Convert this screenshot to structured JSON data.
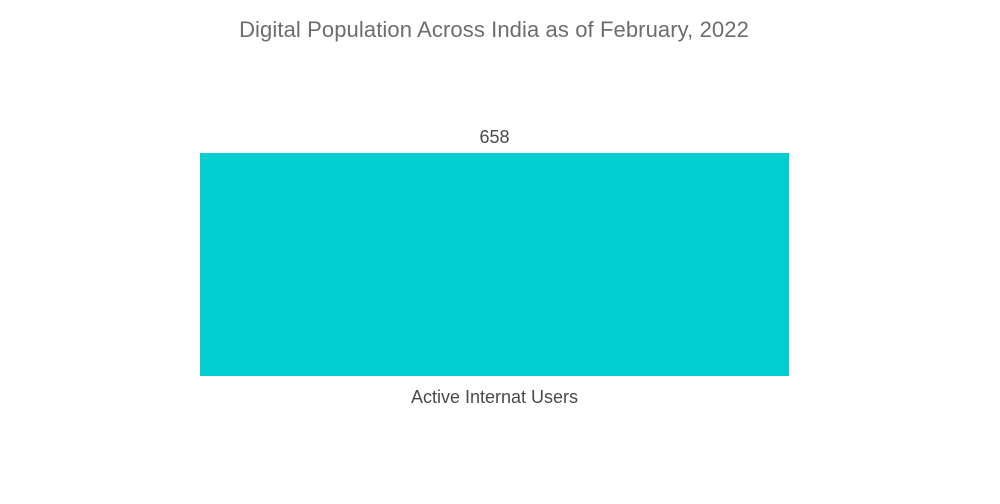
{
  "chart_data": {
    "type": "bar",
    "title": "Digital Population Across India as of February, 2022",
    "categories": [
      "Active Internat Users"
    ],
    "values": [
      658
    ],
    "data_labels": [
      "658"
    ],
    "xlabel": "",
    "ylabel": "",
    "ylim": [
      0,
      658
    ],
    "grid": false,
    "legend": "none",
    "bar_color": "#00ced1",
    "text_color": "#4a4a4a",
    "title_color": "#6d6d6d"
  }
}
